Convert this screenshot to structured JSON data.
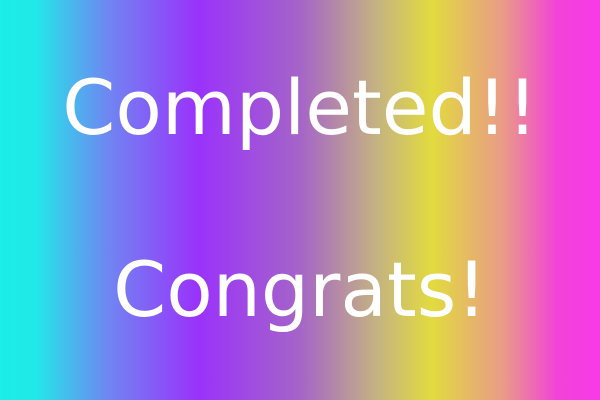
{
  "message": {
    "headline": "Completed!!",
    "subline": "Congrats!"
  },
  "colors": {
    "text": "#ffffff",
    "gradient_stops": [
      "#1aeee6",
      "#6f86f2",
      "#9a32fb",
      "#a564c8",
      "#e2db3e",
      "#e99a88",
      "#f83ae8"
    ]
  }
}
